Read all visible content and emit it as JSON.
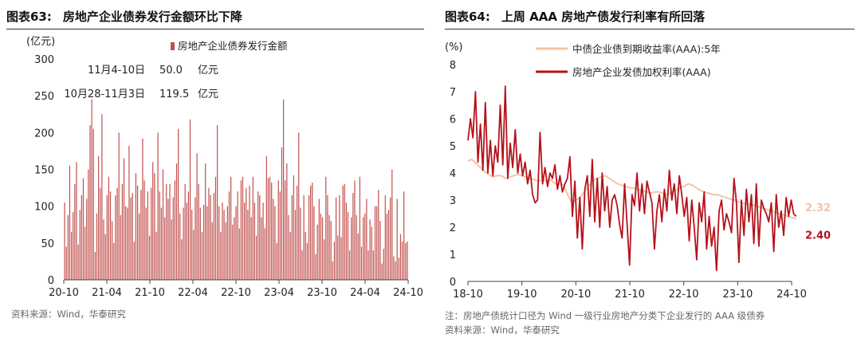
{
  "left": {
    "fig_label": "图表63:",
    "title": "房地产企业债券发行金额环比下降",
    "source": "资料来源：Wind，华泰研究"
  },
  "right": {
    "fig_label": "图表64:",
    "title": "上周 AAA 房地产债发行利率有所回落",
    "note": "注：房地产债统计口径为 Wind 一级行业房地产分类下企业发行的 AAA 级债券",
    "source": "资料来源：Wind，华泰研究"
  },
  "colors": {
    "bar": "#c0504d",
    "dark_red": "#b5121b",
    "light": "#f2c4a5"
  },
  "chart_data": [
    {
      "type": "bar",
      "unit_label": "(亿元)",
      "legend": "房地产企业债券发行金额",
      "ylim": [
        0,
        300
      ],
      "yticks": [
        0,
        50,
        100,
        150,
        200,
        250,
        300
      ],
      "xticks": [
        "20-10",
        "21-04",
        "21-10",
        "22-04",
        "22-10",
        "23-04",
        "23-10",
        "24-04",
        "24-10"
      ],
      "period": "weekly, 2020-10 to 2024-11",
      "annotations": [
        {
          "period": "11月4-10日",
          "value": "50.0",
          "unit": "亿元"
        },
        {
          "period": "10月28-11月3日",
          "value": "119.5",
          "unit": "亿元"
        }
      ],
      "values": [
        105,
        45,
        88,
        155,
        65,
        92,
        130,
        160,
        48,
        95,
        115,
        138,
        72,
        110,
        150,
        210,
        245,
        205,
        38,
        90,
        168,
        125,
        225,
        82,
        62,
        115,
        140,
        120,
        80,
        50,
        115,
        125,
        200,
        88,
        130,
        165,
        100,
        98,
        182,
        112,
        118,
        52,
        145,
        128,
        90,
        122,
        192,
        135,
        98,
        120,
        60,
        125,
        160,
        145,
        65,
        200,
        120,
        98,
        150,
        85,
        130,
        110,
        130,
        82,
        112,
        135,
        158,
        205,
        90,
        55,
        98,
        130,
        105,
        120,
        218,
        95,
        68,
        112,
        172,
        130,
        98,
        65,
        102,
        158,
        100,
        125,
        115,
        78,
        118,
        140,
        210,
        100,
        65,
        105,
        95,
        78,
        100,
        120,
        140,
        75,
        85,
        100,
        120,
        70,
        135,
        140,
        105,
        125,
        95,
        128,
        85,
        140,
        105,
        60,
        120,
        115,
        85,
        105,
        70,
        168,
        138,
        140,
        132,
        110,
        100,
        50,
        135,
        120,
        180,
        245,
        135,
        158,
        88,
        65,
        115,
        142,
        95,
        128,
        200,
        98,
        40,
        115,
        65,
        50,
        115,
        128,
        132,
        100,
        35,
        75,
        110,
        90,
        85,
        55,
        140,
        115,
        88,
        80,
        25,
        52,
        112,
        60,
        115,
        58,
        128,
        130,
        105,
        92,
        40,
        85,
        118,
        135,
        88,
        63,
        140,
        45,
        85,
        90,
        110,
        40,
        82,
        72,
        40,
        100,
        100,
        122,
        80,
        22,
        42,
        115,
        90,
        95,
        112,
        150,
        32,
        25,
        110,
        30,
        62,
        52,
        120,
        50,
        52
      ]
    },
    {
      "type": "line",
      "unit_label": "(%)",
      "ylim": [
        0,
        8
      ],
      "yticks": [
        0,
        1,
        2,
        3,
        4,
        5,
        6,
        7,
        8
      ],
      "xticks": [
        "18-10",
        "19-10",
        "20-10",
        "21-10",
        "22-10",
        "23-10",
        "24-10"
      ],
      "series": [
        {
          "name": "中债企业债到期收益率(AAA):5年",
          "color": "#f2c4a5",
          "last_label": "2.32",
          "start": "2018-10",
          "end": "2024-11",
          "values": [
            4.45,
            4.5,
            4.35,
            4.2,
            4.05,
            3.95,
            3.85,
            3.9,
            3.9,
            3.8,
            3.85,
            3.9,
            3.95,
            3.9,
            3.85,
            3.8,
            3.75,
            3.7,
            3.75,
            3.7,
            3.75,
            3.6,
            3.6,
            3.55,
            3.2,
            2.9,
            3.0,
            3.1,
            3.3,
            3.5,
            3.7,
            3.8,
            3.85,
            3.9,
            3.8,
            3.7,
            3.6,
            3.55,
            3.5,
            3.45,
            3.45,
            3.4,
            3.35,
            3.3,
            3.25,
            3.3,
            3.3,
            3.25,
            3.2,
            3.3,
            3.35,
            3.45,
            3.5,
            3.6,
            3.55,
            3.45,
            3.35,
            3.3,
            3.25,
            3.2,
            3.2,
            3.15,
            3.1,
            3.05,
            3.0,
            2.95,
            2.9,
            2.85,
            2.85,
            2.8,
            2.75,
            2.7,
            2.65,
            2.6,
            2.55,
            2.5,
            2.45,
            2.4,
            2.35,
            2.32
          ]
        },
        {
          "name": "房地产企业发债加权利率(AAA)",
          "color": "#b5121b",
          "last_label": "2.40",
          "start": "2018-10",
          "end": "2024-11",
          "values": [
            5.2,
            6.0,
            5.3,
            7.0,
            4.4,
            5.8,
            4.1,
            6.6,
            4.0,
            5.2,
            3.9,
            5.0,
            4.4,
            6.5,
            4.3,
            7.2,
            3.8,
            5.1,
            4.2,
            5.6,
            4.0,
            4.7,
            3.9,
            4.4,
            3.6,
            4.1,
            3.2,
            2.9,
            3.0,
            5.5,
            3.6,
            4.2,
            3.5,
            4.0,
            3.8,
            4.3,
            3.4,
            3.9,
            3.3,
            3.6,
            3.8,
            4.6,
            2.4,
            3.7,
            1.6,
            3.1,
            1.2,
            3.4,
            3.9,
            2.4,
            4.5,
            2.2,
            3.8,
            2.0,
            4.0,
            2.6,
            3.5,
            2.0,
            3.0,
            3.2,
            2.8,
            2.1,
            1.6,
            3.6,
            2.1,
            0.6,
            3.2,
            2.8,
            4.0,
            2.6,
            3.6,
            2.5,
            3.7,
            3.3,
            2.9,
            1.2,
            2.6,
            3.2,
            2.2,
            3.4,
            2.6,
            4.1,
            3.0,
            3.6,
            2.5,
            3.9,
            3.2,
            2.4,
            3.1,
            1.5,
            3.0,
            2.0,
            0.8,
            2.9,
            2.2,
            3.3,
            1.2,
            2.4,
            1.3,
            2.0,
            0.4,
            2.6,
            3.0,
            1.9,
            2.5,
            2.2,
            1.8,
            3.8,
            2.9,
            0.7,
            3.0,
            1.7,
            3.4,
            2.2,
            3.2,
            1.4,
            3.6,
            1.3,
            3.0,
            2.7,
            2.5,
            2.2,
            2.9,
            1.1,
            3.2,
            2.0,
            2.6,
            1.7,
            3.1,
            2.4,
            3.0,
            2.5,
            2.4
          ]
        }
      ]
    }
  ]
}
